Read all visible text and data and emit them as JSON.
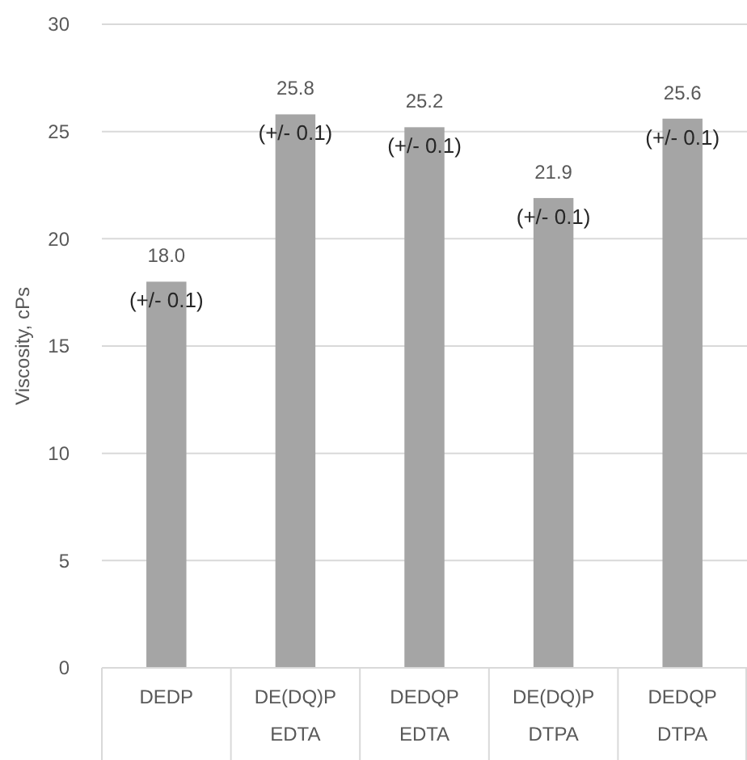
{
  "chart_data": {
    "type": "bar",
    "ylabel": "Viscosity, cPs",
    "categories": [
      "DEDP",
      "DE(DQ)P\nEDTA",
      "DEDQP\nEDTA",
      "DE(DQ)P\nDTPA",
      "DEDQP\nDTPA"
    ],
    "values": [
      18.0,
      25.8,
      25.2,
      21.9,
      25.6
    ],
    "color": "#a5a5a5",
    "value_labels": [
      "18.0",
      "25.8",
      "25.2",
      "21.9",
      "25.6"
    ],
    "annotations": [
      {
        "text": "(+/- 0.1)",
        "x": "DEDP",
        "y": 18.0
      },
      {
        "text": "(+/- 0.1)",
        "x": "DE(DQ)P\nEDTA",
        "y": 25.8
      },
      {
        "text": "(+/- 0.1)",
        "x": "DEDQP\nEDTA",
        "y": 25.2
      },
      {
        "text": "(+/- 0.1)",
        "x": "DE(DQ)P\nDTPA",
        "y": 21.9
      },
      {
        "text": "(+/- 0.1)",
        "x": "DEDQP\nDTPA",
        "y": 25.6
      }
    ],
    "ylim": [
      0,
      30
    ],
    "yticks": [
      0,
      5,
      10,
      15,
      20,
      25,
      30
    ],
    "grid": "y"
  }
}
